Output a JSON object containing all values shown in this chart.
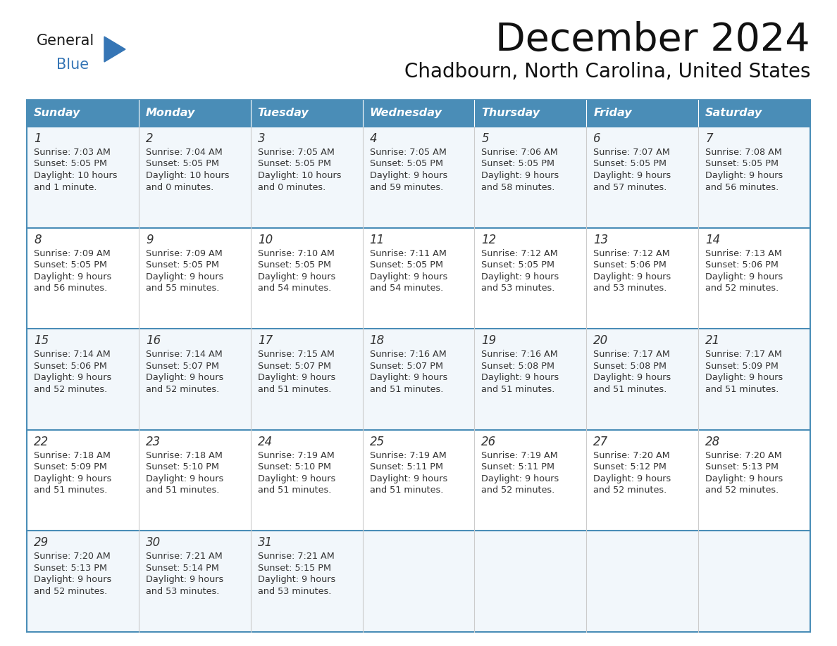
{
  "title": "December 2024",
  "subtitle": "Chadbourn, North Carolina, United States",
  "header_bg": "#4A8DB7",
  "header_text": "#FFFFFF",
  "row_bg_odd": "#F2F7FB",
  "row_bg_even": "#FFFFFF",
  "border_color": "#4A8DB7",
  "cell_divider": "#CCCCCC",
  "day_headers": [
    "Sunday",
    "Monday",
    "Tuesday",
    "Wednesday",
    "Thursday",
    "Friday",
    "Saturday"
  ],
  "calendar_data": [
    [
      {
        "day": "1",
        "sunrise": "7:03 AM",
        "sunset": "5:05 PM",
        "daylight_h": "10 hours",
        "daylight_m": "and 1 minute."
      },
      {
        "day": "2",
        "sunrise": "7:04 AM",
        "sunset": "5:05 PM",
        "daylight_h": "10 hours",
        "daylight_m": "and 0 minutes."
      },
      {
        "day": "3",
        "sunrise": "7:05 AM",
        "sunset": "5:05 PM",
        "daylight_h": "10 hours",
        "daylight_m": "and 0 minutes."
      },
      {
        "day": "4",
        "sunrise": "7:05 AM",
        "sunset": "5:05 PM",
        "daylight_h": "9 hours",
        "daylight_m": "and 59 minutes."
      },
      {
        "day": "5",
        "sunrise": "7:06 AM",
        "sunset": "5:05 PM",
        "daylight_h": "9 hours",
        "daylight_m": "and 58 minutes."
      },
      {
        "day": "6",
        "sunrise": "7:07 AM",
        "sunset": "5:05 PM",
        "daylight_h": "9 hours",
        "daylight_m": "and 57 minutes."
      },
      {
        "day": "7",
        "sunrise": "7:08 AM",
        "sunset": "5:05 PM",
        "daylight_h": "9 hours",
        "daylight_m": "and 56 minutes."
      }
    ],
    [
      {
        "day": "8",
        "sunrise": "7:09 AM",
        "sunset": "5:05 PM",
        "daylight_h": "9 hours",
        "daylight_m": "and 56 minutes."
      },
      {
        "day": "9",
        "sunrise": "7:09 AM",
        "sunset": "5:05 PM",
        "daylight_h": "9 hours",
        "daylight_m": "and 55 minutes."
      },
      {
        "day": "10",
        "sunrise": "7:10 AM",
        "sunset": "5:05 PM",
        "daylight_h": "9 hours",
        "daylight_m": "and 54 minutes."
      },
      {
        "day": "11",
        "sunrise": "7:11 AM",
        "sunset": "5:05 PM",
        "daylight_h": "9 hours",
        "daylight_m": "and 54 minutes."
      },
      {
        "day": "12",
        "sunrise": "7:12 AM",
        "sunset": "5:05 PM",
        "daylight_h": "9 hours",
        "daylight_m": "and 53 minutes."
      },
      {
        "day": "13",
        "sunrise": "7:12 AM",
        "sunset": "5:06 PM",
        "daylight_h": "9 hours",
        "daylight_m": "and 53 minutes."
      },
      {
        "day": "14",
        "sunrise": "7:13 AM",
        "sunset": "5:06 PM",
        "daylight_h": "9 hours",
        "daylight_m": "and 52 minutes."
      }
    ],
    [
      {
        "day": "15",
        "sunrise": "7:14 AM",
        "sunset": "5:06 PM",
        "daylight_h": "9 hours",
        "daylight_m": "and 52 minutes."
      },
      {
        "day": "16",
        "sunrise": "7:14 AM",
        "sunset": "5:07 PM",
        "daylight_h": "9 hours",
        "daylight_m": "and 52 minutes."
      },
      {
        "day": "17",
        "sunrise": "7:15 AM",
        "sunset": "5:07 PM",
        "daylight_h": "9 hours",
        "daylight_m": "and 51 minutes."
      },
      {
        "day": "18",
        "sunrise": "7:16 AM",
        "sunset": "5:07 PM",
        "daylight_h": "9 hours",
        "daylight_m": "and 51 minutes."
      },
      {
        "day": "19",
        "sunrise": "7:16 AM",
        "sunset": "5:08 PM",
        "daylight_h": "9 hours",
        "daylight_m": "and 51 minutes."
      },
      {
        "day": "20",
        "sunrise": "7:17 AM",
        "sunset": "5:08 PM",
        "daylight_h": "9 hours",
        "daylight_m": "and 51 minutes."
      },
      {
        "day": "21",
        "sunrise": "7:17 AM",
        "sunset": "5:09 PM",
        "daylight_h": "9 hours",
        "daylight_m": "and 51 minutes."
      }
    ],
    [
      {
        "day": "22",
        "sunrise": "7:18 AM",
        "sunset": "5:09 PM",
        "daylight_h": "9 hours",
        "daylight_m": "and 51 minutes."
      },
      {
        "day": "23",
        "sunrise": "7:18 AM",
        "sunset": "5:10 PM",
        "daylight_h": "9 hours",
        "daylight_m": "and 51 minutes."
      },
      {
        "day": "24",
        "sunrise": "7:19 AM",
        "sunset": "5:10 PM",
        "daylight_h": "9 hours",
        "daylight_m": "and 51 minutes."
      },
      {
        "day": "25",
        "sunrise": "7:19 AM",
        "sunset": "5:11 PM",
        "daylight_h": "9 hours",
        "daylight_m": "and 51 minutes."
      },
      {
        "day": "26",
        "sunrise": "7:19 AM",
        "sunset": "5:11 PM",
        "daylight_h": "9 hours",
        "daylight_m": "and 52 minutes."
      },
      {
        "day": "27",
        "sunrise": "7:20 AM",
        "sunset": "5:12 PM",
        "daylight_h": "9 hours",
        "daylight_m": "and 52 minutes."
      },
      {
        "day": "28",
        "sunrise": "7:20 AM",
        "sunset": "5:13 PM",
        "daylight_h": "9 hours",
        "daylight_m": "and 52 minutes."
      }
    ],
    [
      {
        "day": "29",
        "sunrise": "7:20 AM",
        "sunset": "5:13 PM",
        "daylight_h": "9 hours",
        "daylight_m": "and 52 minutes."
      },
      {
        "day": "30",
        "sunrise": "7:21 AM",
        "sunset": "5:14 PM",
        "daylight_h": "9 hours",
        "daylight_m": "and 53 minutes."
      },
      {
        "day": "31",
        "sunrise": "7:21 AM",
        "sunset": "5:15 PM",
        "daylight_h": "9 hours",
        "daylight_m": "and 53 minutes."
      },
      null,
      null,
      null,
      null
    ]
  ],
  "logo_general_color": "#1a1a1a",
  "logo_blue_color": "#3575B5",
  "logo_triangle_color": "#3575B5",
  "text_color": "#333333"
}
